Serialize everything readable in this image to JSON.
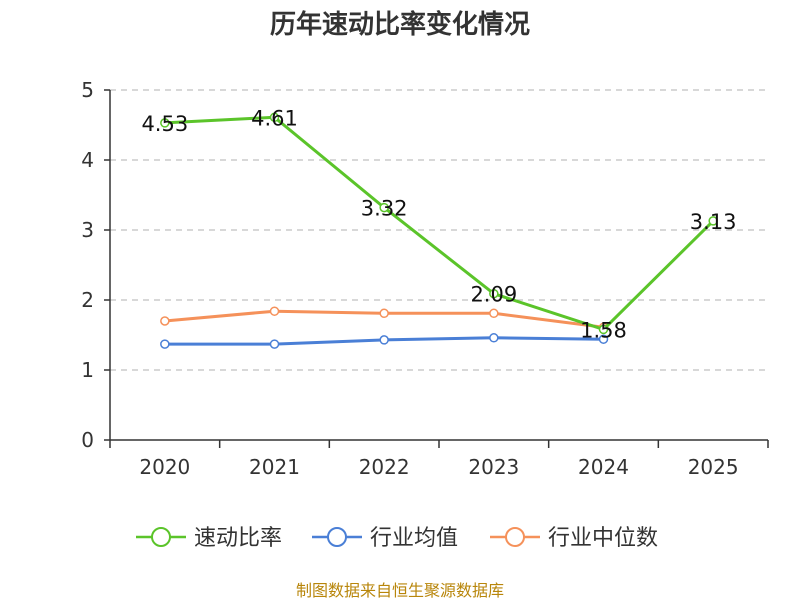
{
  "chart_data": {
    "type": "line",
    "title": "历年速动比率变化情况",
    "categories": [
      "2020",
      "2021",
      "2022",
      "2023",
      "2024",
      "2025"
    ],
    "ylim": [
      0,
      5
    ],
    "yticks": [
      0,
      1,
      2,
      3,
      4,
      5
    ],
    "grid": true,
    "legend_position": "bottom",
    "series": [
      {
        "name": "速动比率",
        "color": "#5bc42a",
        "values": [
          4.53,
          4.61,
          3.32,
          2.09,
          1.58,
          3.13
        ],
        "labels": [
          "4.53",
          "4.61",
          "3.32",
          "2.09",
          "1.58",
          "3.13"
        ]
      },
      {
        "name": "行业均值",
        "color": "#4a7fd6",
        "values": [
          1.37,
          1.37,
          1.43,
          1.46,
          1.44,
          null
        ]
      },
      {
        "name": "行业中位数",
        "color": "#f5915a",
        "values": [
          1.7,
          1.84,
          1.81,
          1.81,
          1.61,
          null
        ]
      }
    ],
    "source": "制图数据来自恒生聚源数据库"
  }
}
